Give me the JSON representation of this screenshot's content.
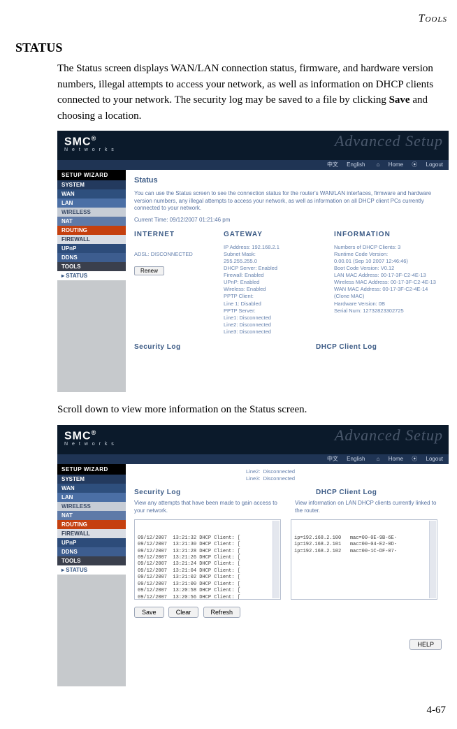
{
  "page": {
    "header": "Tools",
    "title": "STATUS",
    "intro_1": "The Status screen displays WAN/LAN connection status, firmware, and hardware version numbers, illegal attempts to access your network, as well as information on DHCP clients connected to your network. The security log may be saved to a file by clicking ",
    "intro_bold": "Save",
    "intro_2": " and choosing a location.",
    "scroll": "Scroll down to view more information on the Status screen.",
    "pageno": "4-67"
  },
  "banner": {
    "logo": "SMC",
    "reg": "®",
    "sub": "N e t w o r k s",
    "adv": "Advanced Setup",
    "zh": "中文",
    "en": "English",
    "home": "Home",
    "logout": "Logout"
  },
  "nav": {
    "wizard": "SETUP WIZARD",
    "items": [
      {
        "label": "SYSTEM",
        "bg": "#233a5e"
      },
      {
        "label": "WAN",
        "bg": "#2e4f7d"
      },
      {
        "label": "LAN",
        "bg": "#4b6fa5"
      },
      {
        "label": "WIRELESS",
        "bg": "#c7cdd6",
        "fg": "#3b4c68"
      },
      {
        "label": "NAT",
        "bg": "#5e7aa8"
      },
      {
        "label": "ROUTING",
        "bg": "#c5400f"
      },
      {
        "label": "FIREWALL",
        "bg": "#d9dde4",
        "fg": "#2e3b52"
      },
      {
        "label": "UPnP",
        "bg": "#2d4c7a"
      },
      {
        "label": "DDNS",
        "bg": "#3d5d8f"
      },
      {
        "label": "TOOLS",
        "bg": "#3a3f4c"
      }
    ],
    "status": "STATUS",
    "arrow": "▸"
  },
  "shot1": {
    "title": "Status",
    "desc": "You can use the Status screen to see the connection status for the router's WAN/LAN interfaces, firmware and hardware version numbers, any illegal attempts to access your network, as well as information on all DHCP client PCs currently connected to your network.",
    "curtime": "Current Time: 09/12/2007 01:21:46 pm",
    "h_internet": "INTERNET",
    "h_gateway": "GATEWAY",
    "h_info": "INFORMATION",
    "internet": "ADSL:  DISCONNECTED",
    "renew": "Renew",
    "gateway": "IP Address:  192.168.2.1\nSubnet Mask:\n  255.255.255.0\nDHCP Server:  Enabled\nFirewall:  Enabled\nUPnP:  Enabled\nWireless:  Enabled\nPPTP Client:\n  Line 1:  Disabled\nPPTP Server:\n  Line1:  Disconnected\n  Line2:  Disconnected\n  Line3:  Disconnected",
    "information": "Numbers of DHCP Clients:  3\nRuntime Code Version:\n     0.00.01 (Sep 10 2007 12:46:46)\nBoot Code Version:  V0.12\nLAN MAC Address: 00-17-3F-C2-4E-13\nWireless MAC Address: 00-17-3F-C2-4E-13\nWAN MAC Address: 00-17-3F-C2-4E-14 (Clone MAC)\nHardware Version:  0B\nSerial Num:    12732823302725",
    "seclog": "Security Log",
    "dhcplog": "DHCP Client Log"
  },
  "shot2": {
    "pretop": "Line2:  Disconnected\nLine3:  Disconnected",
    "seclog": "Security Log",
    "dhcplog": "DHCP Client Log",
    "secdesc": "View any attempts that have been made to gain access to your network.",
    "dhcpdesc": "View information on LAN DHCP clients currently linked to the router.",
    "secbox": "09/12/2007  13:21:32 DHCP Client: [\n09/12/2007  13:21:30 DHCP Client: [\n09/12/2007  13:21:28 DHCP Client: [\n09/12/2007  13:21:26 DHCP Client: [\n09/12/2007  13:21:24 DHCP Client: [\n09/12/2007  13:21:04 DHCP Client: [\n09/12/2007  13:21:02 DHCP Client: [\n09/12/2007  13:21:00 DHCP Client: [\n09/12/2007  13:20:58 DHCP Client: [\n09/12/2007  13:20:56 DHCP Client: [",
    "dhcpbox": "ip=192.168.2.100   mac=00-0E-9B-6E-\nip=192.168.2.101   mac=00-04-E2-0D-\nip=192.168.2.102   mac=00-1C-DF-07-",
    "save": "Save",
    "clear": "Clear",
    "refresh": "Refresh",
    "help": "HELP"
  }
}
